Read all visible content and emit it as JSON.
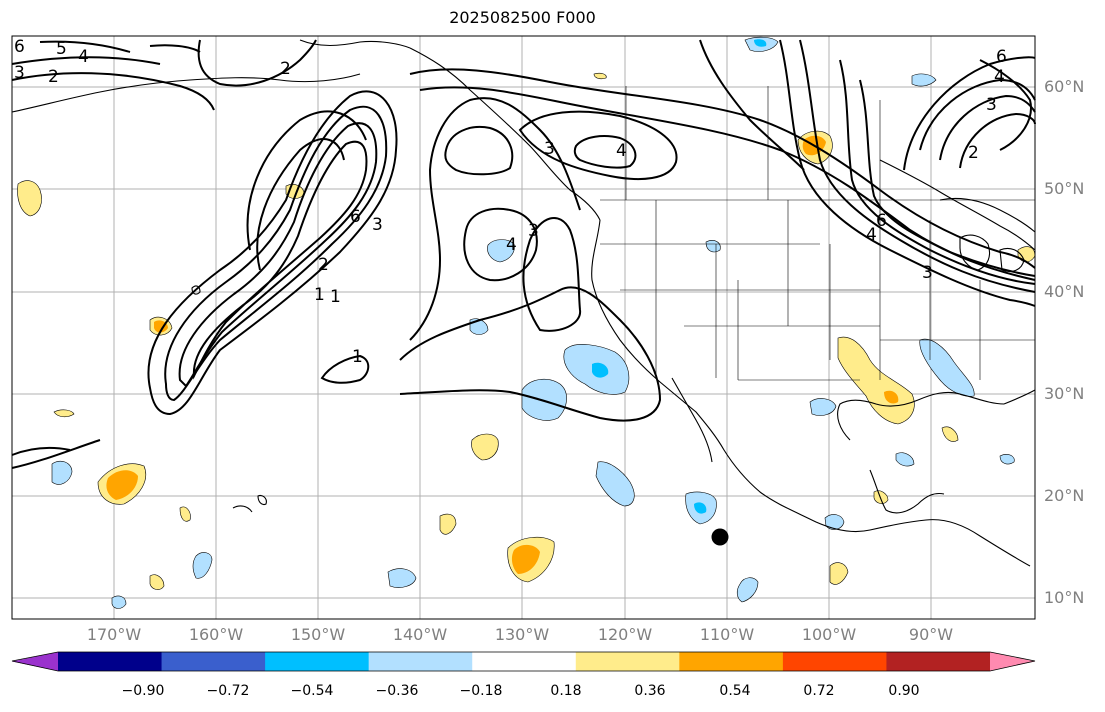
{
  "title": "2025082500 F000",
  "lat_labels": [
    "60°N",
    "50°N",
    "40°N",
    "30°N",
    "20°N",
    "10°N"
  ],
  "lon_labels": [
    "170°W",
    "160°W",
    "150°W",
    "140°W",
    "130°W",
    "120°W",
    "110°W",
    "100°W",
    "90°W"
  ],
  "contour_labels": [
    "6",
    "5",
    "4",
    "3",
    "2",
    "2",
    "6",
    "4",
    "3",
    "2",
    "4",
    "3",
    "6",
    "3",
    "4",
    "3",
    "2",
    "1",
    "1",
    "1",
    "6",
    "4",
    "3"
  ],
  "colorbar": {
    "colors": [
      "#9a32cd",
      "#00008b",
      "#3a5fcd",
      "#00bfff",
      "#b2e0ff",
      "#ffffff",
      "#ffec8b",
      "#ffa500",
      "#ff4500",
      "#b22222",
      "#ff8ab0"
    ],
    "labels": [
      "−0.90",
      "−0.72",
      "−0.54",
      "−0.36",
      "−0.18",
      "0.18",
      "0.36",
      "0.54",
      "0.72",
      "0.90"
    ]
  },
  "fill_colors": {
    "light_blue": "#b2e0ff",
    "blue": "#00bfff",
    "yellow": "#ffec8b",
    "orange": "#ffa500"
  },
  "marker": {
    "lon": -111,
    "lat": 16
  }
}
